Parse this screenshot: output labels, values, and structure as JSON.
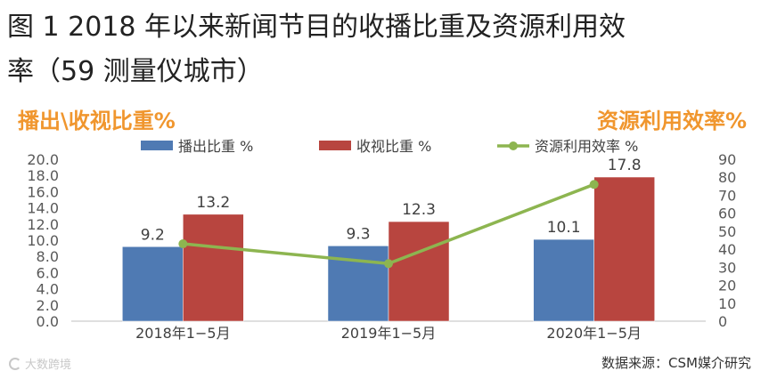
{
  "title": {
    "line1": "图 1 2018 年以来新闻节目的收播比重及资源利用效",
    "line2": "率（59 测量仪城市）"
  },
  "chart_data": {
    "type": "bar",
    "categories": [
      "2018年1−5月",
      "2019年1−5月",
      "2020年1−5月"
    ],
    "series": [
      {
        "name": "播出比重 %",
        "type": "bar",
        "axis": "left",
        "color": "#4f7ab3",
        "values": [
          9.2,
          9.3,
          10.1
        ]
      },
      {
        "name": "收视比重 %",
        "type": "bar",
        "axis": "left",
        "color": "#b8453f",
        "values": [
          13.2,
          12.3,
          17.8
        ]
      },
      {
        "name": "资源利用效率 %",
        "type": "line",
        "axis": "right",
        "color": "#8db550",
        "values": [
          43,
          32,
          76
        ]
      }
    ],
    "left_axis": {
      "label": "播出\\收视比重%",
      "ylim": [
        0,
        20
      ],
      "ticks": [
        "0.0",
        "2.0",
        "4.0",
        "6.0",
        "8.0",
        "10.0",
        "12.0",
        "14.0",
        "16.0",
        "18.0",
        "20.0"
      ]
    },
    "right_axis": {
      "label": "资源利用效率%",
      "ylim": [
        0,
        90
      ],
      "ticks": [
        "0",
        "10",
        "20",
        "30",
        "40",
        "50",
        "60",
        "70",
        "80",
        "90"
      ]
    },
    "label_color": "#f0962e",
    "grid": false,
    "legend_position": "top"
  },
  "footer": {
    "watermark": "大数跨境",
    "source": "数据来源：CSM媒介研究"
  }
}
